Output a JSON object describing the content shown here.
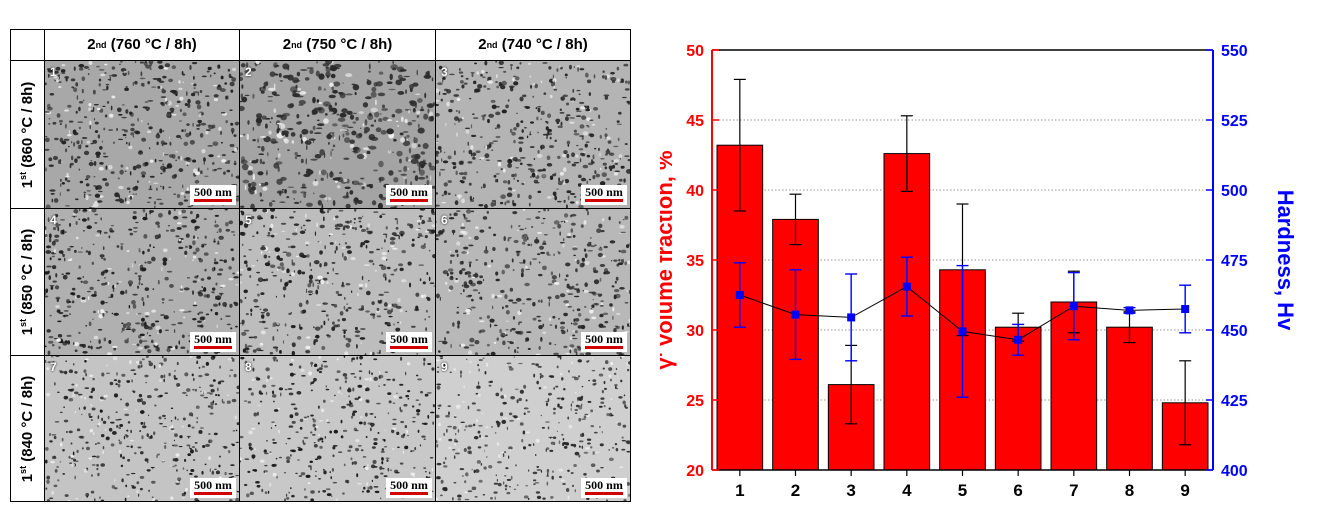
{
  "micrographs": {
    "col_headers": [
      {
        "main": "2",
        "sup": "nd",
        "rest": " (760 °C / 8h)"
      },
      {
        "main": "2",
        "sup": "nd",
        "rest": " (750 °C / 8h)"
      },
      {
        "main": "2",
        "sup": "nd",
        "rest": " (740 °C / 8h)"
      }
    ],
    "row_headers": [
      {
        "main": "1",
        "sup": "st",
        "rest": " (860 °C / 8h)"
      },
      {
        "main": "1",
        "sup": "st",
        "rest": " (850 °C / 8h)"
      },
      {
        "main": "1",
        "sup": "st",
        "rest": " (840 °C / 8h)"
      }
    ],
    "cells": [
      {
        "num": "1",
        "scale": "500 nm",
        "tone": "#a8a8a8",
        "dot_color": "#222222"
      },
      {
        "num": "2",
        "scale": "500 nm",
        "tone": "#a4a4a4",
        "dot_color": "#2a2a2a"
      },
      {
        "num": "3",
        "scale": "500 nm",
        "tone": "#b4b4b4",
        "dot_color": "#222222"
      },
      {
        "num": "4",
        "scale": "500 nm",
        "tone": "#b0b0b0",
        "dot_color": "#1c1c1c"
      },
      {
        "num": "5",
        "scale": "500 nm",
        "tone": "#bdbdbd",
        "dot_color": "#1e1e1e"
      },
      {
        "num": "6",
        "scale": "500 nm",
        "tone": "#b8b8b8",
        "dot_color": "#262626"
      },
      {
        "num": "7",
        "scale": "500 nm",
        "tone": "#c4c4c4",
        "dot_color": "#1a1a1a"
      },
      {
        "num": "8",
        "scale": "500 nm",
        "tone": "#c8c8c8",
        "dot_color": "#1a1a1a"
      },
      {
        "num": "9",
        "scale": "500 nm",
        "tone": "#cfcfcf",
        "dot_color": "#262626"
      }
    ]
  },
  "chart_data": {
    "type": "bar",
    "categories": [
      "1",
      "2",
      "3",
      "4",
      "5",
      "6",
      "7",
      "8",
      "9"
    ],
    "ylabel_left": "γ' volume fraction, %",
    "ylabel_right": "Hardness, Hv",
    "ylim_left": [
      20,
      50
    ],
    "yticks_left": [
      20,
      25,
      30,
      35,
      40,
      45,
      50
    ],
    "ylim_right": [
      400,
      550
    ],
    "yticks_right": [
      400,
      425,
      450,
      475,
      500,
      525,
      550
    ],
    "grid": "horizontal dotted",
    "series": [
      {
        "axis": "left",
        "kind": "bar",
        "color": "#ff0000",
        "values": [
          43.2,
          37.9,
          26.1,
          42.6,
          34.3,
          30.2,
          32.0,
          30.2,
          24.8
        ],
        "errors": [
          4.7,
          1.8,
          2.8,
          2.7,
          4.7,
          1.0,
          2.2,
          1.1,
          3.0
        ]
      },
      {
        "axis": "right",
        "kind": "line",
        "color": "#0000ff",
        "values": [
          462.5,
          455.5,
          454.5,
          465.5,
          449.5,
          446.5,
          458.5,
          457.0,
          457.5
        ],
        "errors": [
          11.5,
          16.0,
          15.5,
          10.5,
          23.5,
          5.5,
          12.0,
          1.0,
          8.5
        ]
      }
    ],
    "colors": {
      "left_axis": "#ff0000",
      "right_axis": "#0000ff",
      "bars": "#ff0000",
      "points": "#0000ff"
    }
  }
}
